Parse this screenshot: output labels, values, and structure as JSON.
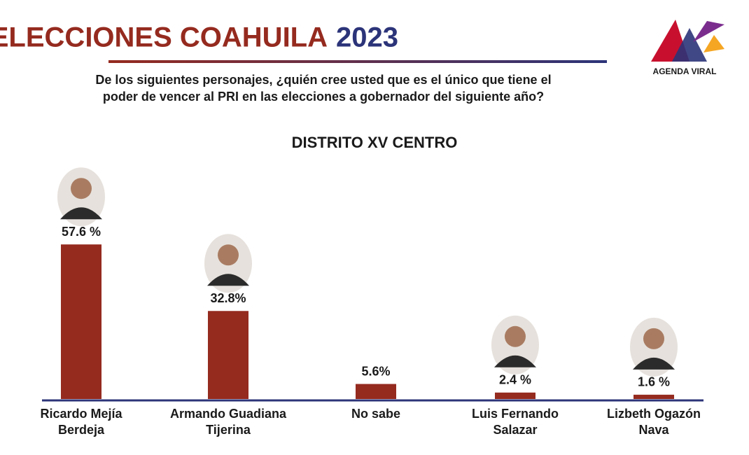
{
  "brand": "AGENDA VIRAL",
  "chart_data": {
    "type": "bar",
    "title": [
      "ELECCIONES COAHUILA",
      "2023"
    ],
    "subtitle": [
      "De los siguientes personajes, ¿quién cree usted que es el único que  tiene el",
      "poder de vencer al PRI en las elecciones a gobernador del  siguiente año?"
    ],
    "chart_title": "DISTRITO XV CENTRO",
    "categories": [
      [
        "Ricardo Mejía",
        "Berdeja"
      ],
      [
        "Armando Guadiana",
        "Tijerina"
      ],
      [
        "No sabe"
      ],
      [
        "Luis Fernando",
        "Salazar"
      ],
      [
        "Lizbeth Ogazón",
        "Nava"
      ]
    ],
    "values": [
      57.6,
      32.8,
      5.6,
      2.4,
      1.6
    ],
    "value_labels": [
      "57.6 %",
      "32.8%",
      "5.6%",
      "2.4 %",
      "1.6 %"
    ],
    "color": "#952a1f",
    "ylim": [
      0,
      60
    ]
  }
}
